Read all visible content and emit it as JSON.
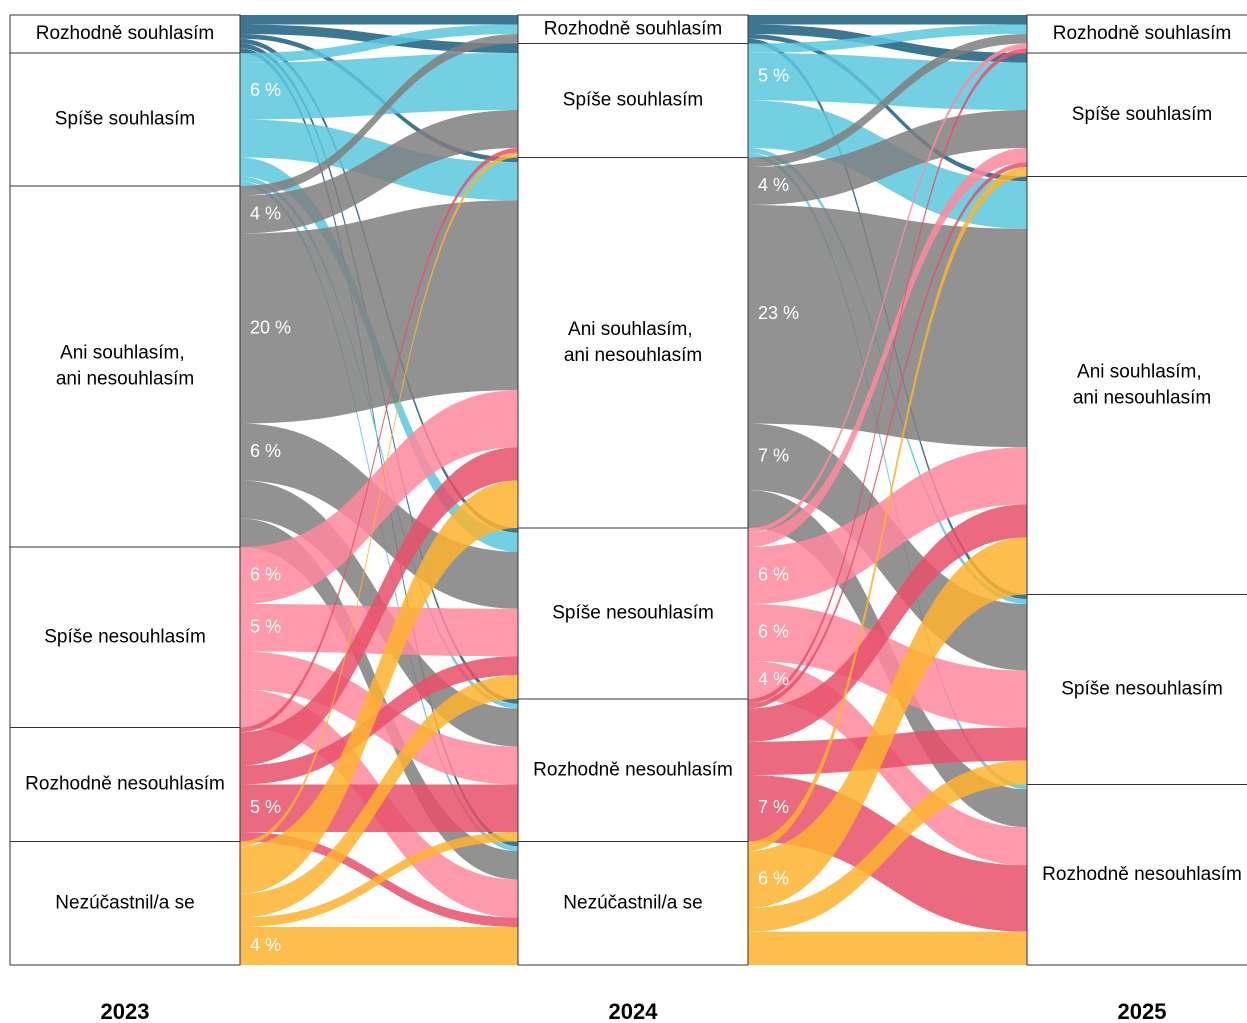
{
  "chart_data": {
    "type": "sankey",
    "colors": [
      "#1b5e7e",
      "#5bc8de",
      "#7f7f7f",
      "#ff889e",
      "#e8506a",
      "#fdb32f"
    ],
    "columns": [
      {
        "label": "2023",
        "nodes": [
          {
            "name": "Rozhodně souhlasím",
            "value": 4
          },
          {
            "name": "Spíše souhlasím",
            "value": 14
          },
          {
            "name": "Ani souhlasím, ani nesouhlasím",
            "value": 38
          },
          {
            "name": "Spíše nesouhlasím",
            "value": 19
          },
          {
            "name": "Rozhodně nesouhlasím",
            "value": 12
          },
          {
            "name": "Nezúčastnil/a se",
            "value": 13
          }
        ]
      },
      {
        "label": "2024",
        "nodes": [
          {
            "name": "Rozhodně souhlasím",
            "value": 3
          },
          {
            "name": "Spíše souhlasím",
            "value": 12
          },
          {
            "name": "Ani souhlasím, ani nesouhlasím",
            "value": 39
          },
          {
            "name": "Spíše nesouhlasím",
            "value": 18
          },
          {
            "name": "Rozhodně nesouhlasím",
            "value": 15
          },
          {
            "name": "Nezúčastnil/a se",
            "value": 13
          }
        ]
      },
      {
        "label": "2025",
        "nodes": [
          {
            "name": "Rozhodně souhlasím",
            "value": 4
          },
          {
            "name": "Spíše souhlasím",
            "value": 13
          },
          {
            "name": "Ani souhlasím, ani nesouhlasím",
            "value": 44
          },
          {
            "name": "Spíše nesouhlasím",
            "value": 20
          },
          {
            "name": "Rozhodně nesouhlasím",
            "value": 19
          }
        ]
      }
    ],
    "flows": [
      {
        "from": 0,
        "to": 1,
        "links": [
          {
            "source": 0,
            "target": 0,
            "value": 1
          },
          {
            "source": 0,
            "target": 1,
            "value": 1
          },
          {
            "source": 0,
            "target": 2,
            "value": 0.5
          },
          {
            "source": 0,
            "target": 3,
            "value": 0.5
          },
          {
            "source": 0,
            "target": 4,
            "value": 0.5
          },
          {
            "source": 0,
            "target": 5,
            "value": 0.5
          },
          {
            "source": 1,
            "target": 0,
            "value": 1
          },
          {
            "source": 1,
            "target": 1,
            "value": 6,
            "label": "6 %"
          },
          {
            "source": 1,
            "target": 2,
            "value": 4
          },
          {
            "source": 1,
            "target": 3,
            "value": 2
          },
          {
            "source": 1,
            "target": 4,
            "value": 0.5
          },
          {
            "source": 1,
            "target": 5,
            "value": 0.5
          },
          {
            "source": 2,
            "target": 0,
            "value": 1
          },
          {
            "source": 2,
            "target": 1,
            "value": 4,
            "label": "4 %"
          },
          {
            "source": 2,
            "target": 2,
            "value": 20,
            "label": "20 %"
          },
          {
            "source": 2,
            "target": 3,
            "value": 6,
            "label": "6 %"
          },
          {
            "source": 2,
            "target": 4,
            "value": 4
          },
          {
            "source": 2,
            "target": 5,
            "value": 3
          },
          {
            "source": 3,
            "target": 2,
            "value": 6,
            "label": "6 %"
          },
          {
            "source": 3,
            "target": 3,
            "value": 5,
            "label": "5 %"
          },
          {
            "source": 3,
            "target": 4,
            "value": 4
          },
          {
            "source": 3,
            "target": 5,
            "value": 4
          },
          {
            "source": 4,
            "target": 1,
            "value": 0.5
          },
          {
            "source": 4,
            "target": 2,
            "value": 3.5
          },
          {
            "source": 4,
            "target": 3,
            "value": 2
          },
          {
            "source": 4,
            "target": 4,
            "value": 5,
            "label": "5 %"
          },
          {
            "source": 4,
            "target": 5,
            "value": 1
          },
          {
            "source": 5,
            "target": 1,
            "value": 0.5
          },
          {
            "source": 5,
            "target": 2,
            "value": 5
          },
          {
            "source": 5,
            "target": 3,
            "value": 2.5
          },
          {
            "source": 5,
            "target": 4,
            "value": 1
          },
          {
            "source": 5,
            "target": 5,
            "value": 4,
            "label": "4 %"
          }
        ]
      },
      {
        "from": 1,
        "to": 2,
        "links": [
          {
            "source": 0,
            "target": 0,
            "value": 1
          },
          {
            "source": 0,
            "target": 1,
            "value": 1
          },
          {
            "source": 0,
            "target": 2,
            "value": 0.5
          },
          {
            "source": 0,
            "target": 3,
            "value": 0.5
          },
          {
            "source": 1,
            "target": 0,
            "value": 1
          },
          {
            "source": 1,
            "target": 1,
            "value": 5,
            "label": "5 %"
          },
          {
            "source": 1,
            "target": 2,
            "value": 5
          },
          {
            "source": 1,
            "target": 3,
            "value": 0.5
          },
          {
            "source": 1,
            "target": 4,
            "value": 0.5
          },
          {
            "source": 2,
            "target": 0,
            "value": 1
          },
          {
            "source": 2,
            "target": 1,
            "value": 4,
            "label": "4 %"
          },
          {
            "source": 2,
            "target": 2,
            "value": 23,
            "label": "23 %"
          },
          {
            "source": 2,
            "target": 3,
            "value": 7,
            "label": "7 %"
          },
          {
            "source": 2,
            "target": 4,
            "value": 4
          },
          {
            "source": 3,
            "target": 0,
            "value": 0.5
          },
          {
            "source": 3,
            "target": 1,
            "value": 1.5
          },
          {
            "source": 3,
            "target": 2,
            "value": 6,
            "label": "6 %"
          },
          {
            "source": 3,
            "target": 3,
            "value": 6,
            "label": "6 %"
          },
          {
            "source": 3,
            "target": 4,
            "value": 4,
            "label": "4 %"
          },
          {
            "source": 4,
            "target": 0,
            "value": 0.5
          },
          {
            "source": 4,
            "target": 1,
            "value": 0.5
          },
          {
            "source": 4,
            "target": 2,
            "value": 3.5
          },
          {
            "source": 4,
            "target": 3,
            "value": 3.5
          },
          {
            "source": 4,
            "target": 4,
            "value": 7,
            "label": "7 %"
          },
          {
            "source": 5,
            "target": 1,
            "value": 1
          },
          {
            "source": 5,
            "target": 2,
            "value": 6,
            "label": "6 %"
          },
          {
            "source": 5,
            "target": 3,
            "value": 2.5
          },
          {
            "source": 5,
            "target": 4,
            "value": 3.5
          }
        ]
      }
    ]
  }
}
